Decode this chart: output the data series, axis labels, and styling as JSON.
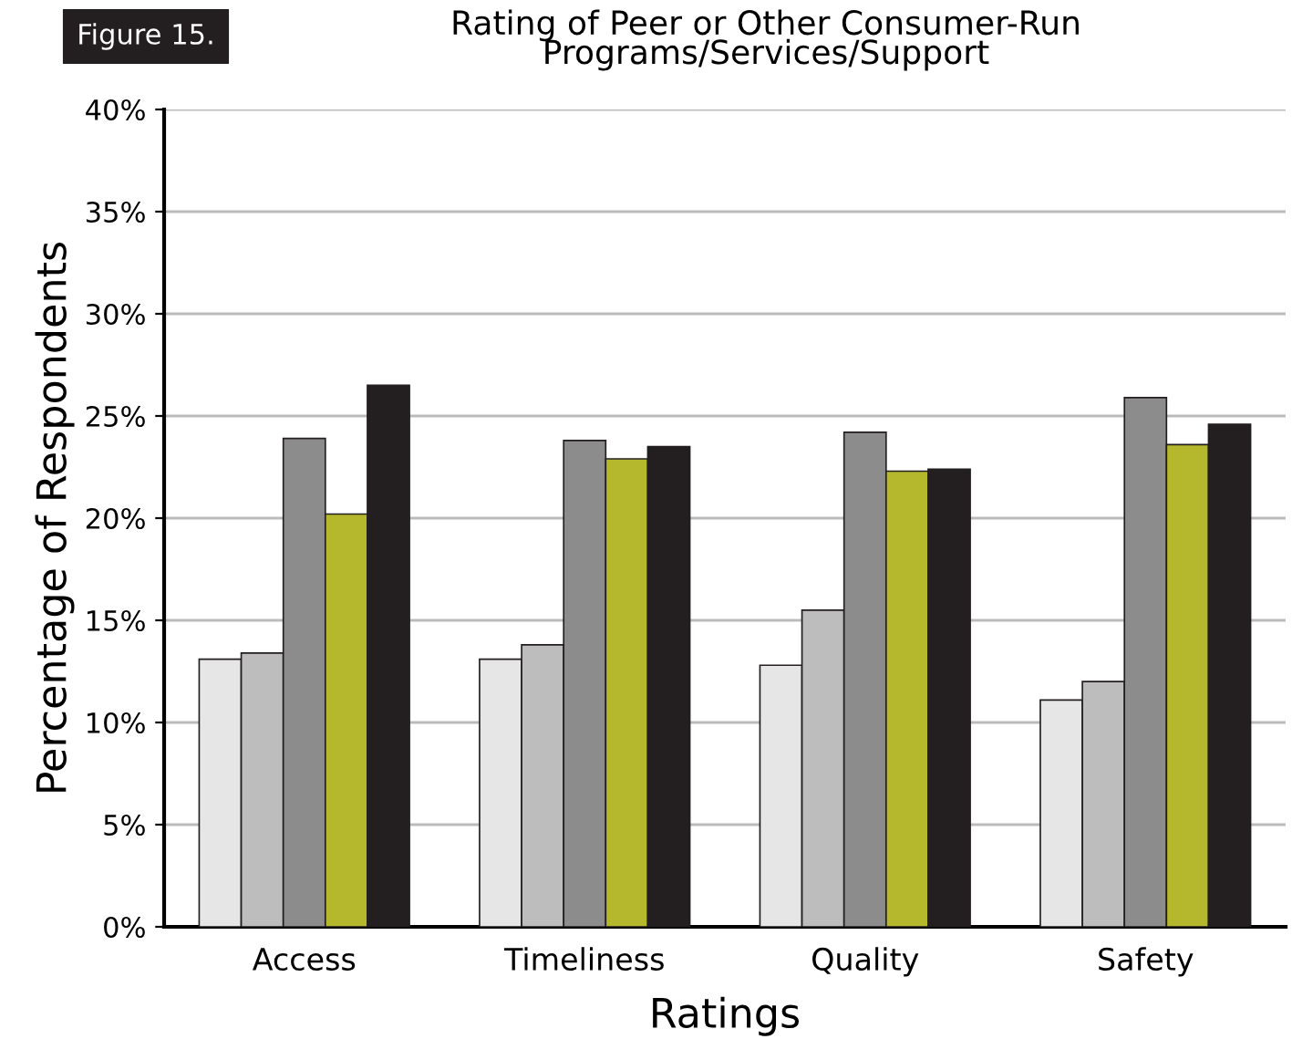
{
  "chart_data": {
    "type": "bar",
    "title": "Rating of Peer or Other Consumer-Run\nPrograms/Services/Support",
    "annotations": [
      "Figure 15."
    ],
    "xlabel": "Ratings",
    "ylabel": "Percentage of Respondents",
    "categories": [
      "Access",
      "Timeliness",
      "Quality",
      "Safety"
    ],
    "series": [
      {
        "color": "#e6e6e6",
        "values": [
          13.1,
          13.1,
          12.8,
          11.1
        ]
      },
      {
        "color": "#bdbdbd",
        "values": [
          13.4,
          13.8,
          15.5,
          12.0
        ]
      },
      {
        "color": "#8c8c8c",
        "values": [
          23.9,
          23.8,
          24.2,
          25.9
        ]
      },
      {
        "color": "#b5b82c",
        "values": [
          20.2,
          22.9,
          22.3,
          23.6
        ]
      },
      {
        "color": "#231f20",
        "values": [
          26.5,
          23.5,
          22.4,
          24.6
        ]
      }
    ],
    "ylim": [
      0,
      40
    ],
    "yticks": [
      {
        "value": 0,
        "label": "0%"
      },
      {
        "value": 5,
        "label": "5%"
      },
      {
        "value": 10,
        "label": "10%"
      },
      {
        "value": 15,
        "label": "15%"
      },
      {
        "value": 20,
        "label": "20%"
      },
      {
        "value": 25,
        "label": "25%"
      },
      {
        "value": 30,
        "label": "30%"
      },
      {
        "value": 35,
        "label": "35%"
      },
      {
        "value": 40,
        "label": "40%"
      }
    ],
    "grid": "y"
  }
}
